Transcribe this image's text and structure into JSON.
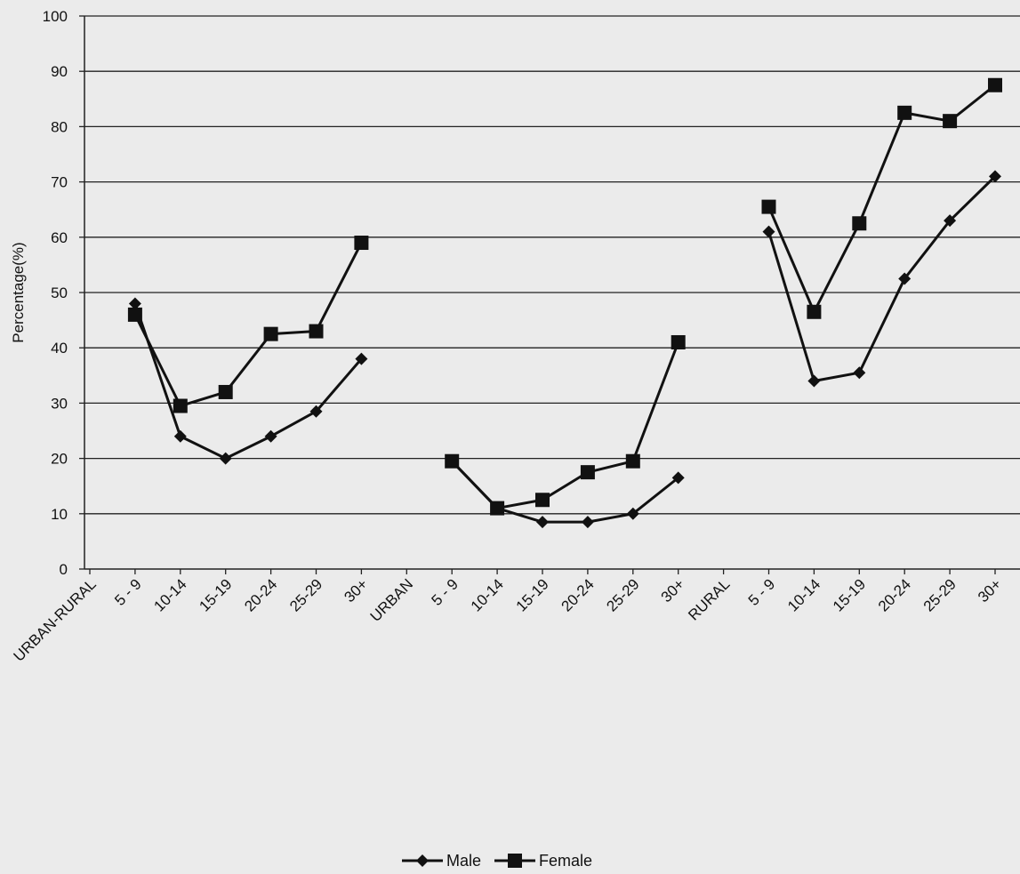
{
  "chart_data": {
    "type": "line",
    "ylabel": "Percentage(%)",
    "ylim": [
      0,
      100
    ],
    "yticks": [
      0,
      10,
      20,
      30,
      40,
      50,
      60,
      70,
      80,
      90,
      100
    ],
    "grid": "horizontal",
    "legend_position": "bottom-center",
    "categories": [
      "URBAN-RURAL",
      "5 - 9",
      "10-14",
      "15-19",
      "20-24",
      "25-29",
      "30+",
      "URBAN",
      "5 - 9",
      "10-14",
      "15-19",
      "20-24",
      "25-29",
      "30+",
      "RURAL",
      "5 - 9",
      "10-14",
      "15-19",
      "20-24",
      "25-29",
      "30+"
    ],
    "series": [
      {
        "name": "Male",
        "marker": "diamond",
        "color": "#111111",
        "values": [
          null,
          48,
          24,
          20,
          24,
          28.5,
          38,
          null,
          19.5,
          11,
          8.5,
          8.5,
          10,
          16.5,
          null,
          61,
          34,
          35.5,
          52.5,
          63,
          71
        ]
      },
      {
        "name": "Female",
        "marker": "square",
        "color": "#111111",
        "values": [
          null,
          46,
          29.5,
          32,
          42.5,
          43,
          59,
          null,
          19.5,
          11,
          12.5,
          17.5,
          19.5,
          41,
          null,
          65.5,
          46.5,
          62.5,
          82.5,
          81,
          87.5
        ]
      }
    ]
  }
}
